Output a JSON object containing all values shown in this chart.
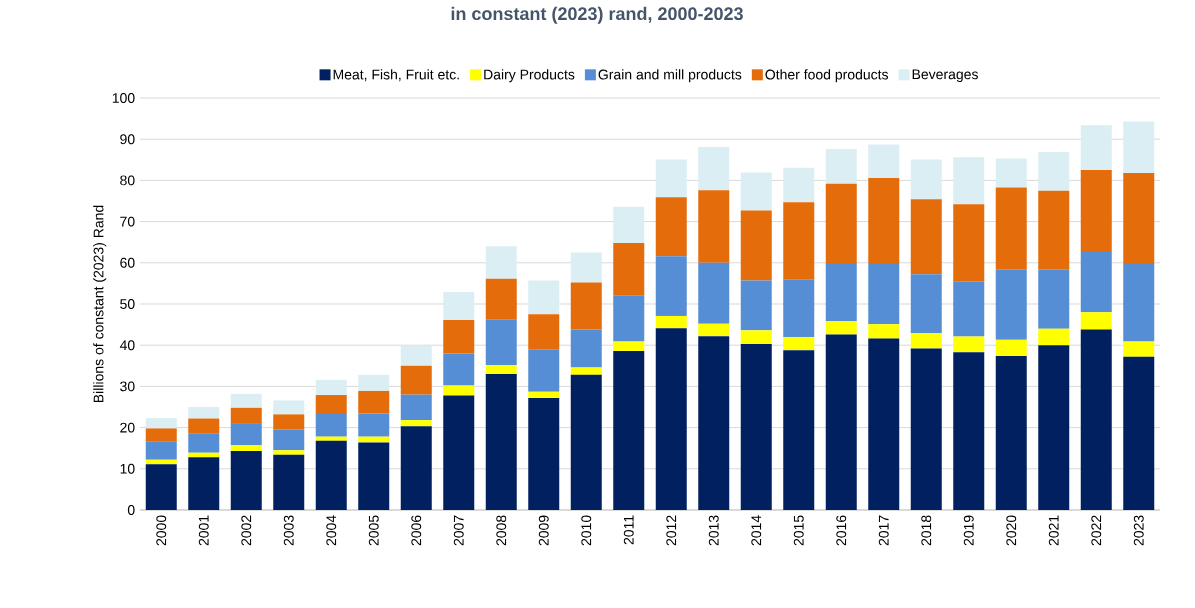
{
  "chart_data": {
    "type": "bar",
    "stacked": true,
    "title": "in constant (2023) rand, 2000-2023",
    "ylabel": "Billions of constant (2023) Rand",
    "categories": [
      "2000",
      "2001",
      "2002",
      "2003",
      "2004",
      "2005",
      "2006",
      "2007",
      "2008",
      "2009",
      "2010",
      "2011",
      "2012",
      "2013",
      "2014",
      "2015",
      "2016",
      "2017",
      "2018",
      "2019",
      "2020",
      "2021",
      "2022",
      "2023"
    ],
    "series": [
      {
        "name": "Meat, Fish, Fruit etc.",
        "color": "#002060",
        "values": [
          11.1,
          12.8,
          14.3,
          13.4,
          16.8,
          16.4,
          20.3,
          27.8,
          33.0,
          27.2,
          32.8,
          38.6,
          44.1,
          42.2,
          40.3,
          38.8,
          42.6,
          41.6,
          39.2,
          38.3,
          37.4,
          40.0,
          43.8,
          37.2
        ]
      },
      {
        "name": "Dairy Products",
        "color": "#ffff00",
        "values": [
          1.1,
          1.1,
          1.4,
          1.1,
          1.0,
          1.4,
          1.5,
          2.4,
          2.2,
          1.5,
          1.8,
          2.3,
          3.0,
          3.0,
          3.3,
          3.2,
          3.2,
          3.5,
          3.7,
          3.8,
          3.9,
          4.0,
          4.2,
          3.7
        ]
      },
      {
        "name": "Grain and mill products",
        "color": "#558ed5",
        "values": [
          4.5,
          4.6,
          5.2,
          5.0,
          5.5,
          5.6,
          6.2,
          7.8,
          11.0,
          10.3,
          9.2,
          11.1,
          14.5,
          14.8,
          12.1,
          13.9,
          13.9,
          14.6,
          14.3,
          13.3,
          17.0,
          14.3,
          14.6,
          18.8
        ]
      },
      {
        "name": "Other food products",
        "color": "#e46c0a",
        "values": [
          3.1,
          3.7,
          3.9,
          3.7,
          4.6,
          5.5,
          7.0,
          8.1,
          9.9,
          8.5,
          11.4,
          12.8,
          14.3,
          17.6,
          17.0,
          18.8,
          19.5,
          20.9,
          18.2,
          18.8,
          20.0,
          19.2,
          19.9,
          22.1
        ]
      },
      {
        "name": "Beverages",
        "color": "#dbeef4",
        "values": [
          2.5,
          2.8,
          3.4,
          3.4,
          3.7,
          3.9,
          4.8,
          6.8,
          7.9,
          8.2,
          7.3,
          8.8,
          9.2,
          10.5,
          9.2,
          8.4,
          8.4,
          8.1,
          9.7,
          11.4,
          7.0,
          9.4,
          10.9,
          12.5
        ]
      }
    ],
    "ylim": [
      0,
      100
    ],
    "yticks": [
      0,
      10,
      20,
      30,
      40,
      50,
      60,
      70,
      80,
      90,
      100
    ],
    "grid": "y",
    "legend": "top"
  }
}
